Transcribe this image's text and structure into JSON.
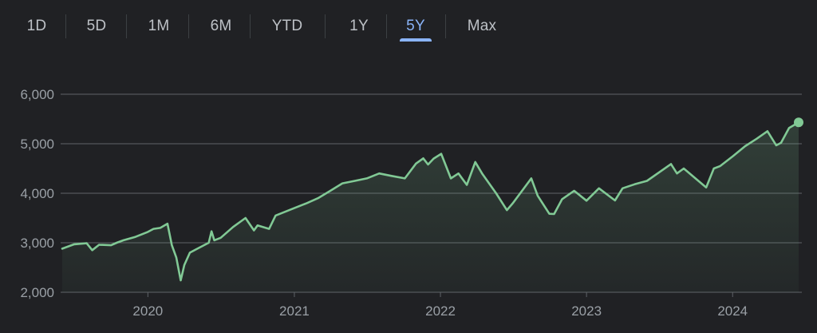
{
  "range_tabs": {
    "items": [
      {
        "label": "1D"
      },
      {
        "label": "5D"
      },
      {
        "label": "1M"
      },
      {
        "label": "6M"
      },
      {
        "label": "YTD"
      },
      {
        "label": "1Y"
      },
      {
        "label": "5Y"
      },
      {
        "label": "Max"
      }
    ],
    "selected": "5Y"
  },
  "colors": {
    "background": "#202124",
    "grid": "#5f6368",
    "line": "#81c995",
    "accent": "#8ab4f8",
    "tick_text": "#9aa0a6"
  },
  "chart_data": {
    "type": "area",
    "title": "",
    "xlabel": "",
    "ylabel": "",
    "ylim": [
      2000,
      6000
    ],
    "xlim": [
      "2019-06-01",
      "2024-06-14"
    ],
    "grid": true,
    "y_ticks": [
      "6,000",
      "5,000",
      "4,000",
      "3,000",
      "2,000"
    ],
    "y_tick_values": [
      6000,
      5000,
      4000,
      3000,
      2000
    ],
    "x_ticks": [
      "2020",
      "2021",
      "2022",
      "2023",
      "2024"
    ],
    "x_tick_dates": [
      "2020-01-01",
      "2021-01-01",
      "2022-01-01",
      "2023-01-01",
      "2024-01-01"
    ],
    "series": [
      {
        "x": [
          "2019-06-01",
          "2019-07-01",
          "2019-08-01",
          "2019-08-15",
          "2019-09-01",
          "2019-10-01",
          "2019-10-15",
          "2019-11-01",
          "2019-12-01",
          "2020-01-01",
          "2020-01-15",
          "2020-02-01",
          "2020-02-19",
          "2020-03-01",
          "2020-03-12",
          "2020-03-23",
          "2020-04-01",
          "2020-04-15",
          "2020-05-01",
          "2020-06-01",
          "2020-06-08",
          "2020-06-15",
          "2020-07-01",
          "2020-08-01",
          "2020-09-01",
          "2020-09-22",
          "2020-10-01",
          "2020-10-30",
          "2020-11-15",
          "2021-01-01",
          "2021-02-01",
          "2021-03-01",
          "2021-04-01",
          "2021-05-01",
          "2021-06-01",
          "2021-07-01",
          "2021-08-01",
          "2021-09-01",
          "2021-10-04",
          "2021-11-01",
          "2021-11-19",
          "2021-12-01",
          "2021-12-15",
          "2022-01-03",
          "2022-01-27",
          "2022-02-15",
          "2022-03-08",
          "2022-03-29",
          "2022-04-15",
          "2022-05-20",
          "2022-06-16",
          "2022-07-01",
          "2022-08-16",
          "2022-09-01",
          "2022-09-30",
          "2022-10-12",
          "2022-11-01",
          "2022-12-01",
          "2023-01-01",
          "2023-02-01",
          "2023-03-13",
          "2023-04-01",
          "2023-05-01",
          "2023-06-01",
          "2023-07-31",
          "2023-08-15",
          "2023-09-01",
          "2023-10-27",
          "2023-11-15",
          "2023-12-01",
          "2024-01-02",
          "2024-02-01",
          "2024-03-01",
          "2024-03-28",
          "2024-04-19",
          "2024-05-01",
          "2024-05-21",
          "2024-06-14"
        ],
        "y": [
          2880,
          2970,
          2990,
          2850,
          2960,
          2950,
          3000,
          3050,
          3120,
          3220,
          3280,
          3300,
          3385,
          2950,
          2700,
          2240,
          2550,
          2800,
          2870,
          3000,
          3230,
          3050,
          3100,
          3320,
          3500,
          3250,
          3350,
          3280,
          3550,
          3700,
          3800,
          3900,
          4050,
          4200,
          4250,
          4300,
          4400,
          4350,
          4300,
          4600,
          4705,
          4580,
          4700,
          4796,
          4300,
          4400,
          4170,
          4630,
          4400,
          4000,
          3660,
          3800,
          4300,
          3950,
          3585,
          3580,
          3880,
          4050,
          3850,
          4100,
          3855,
          4100,
          4180,
          4250,
          4590,
          4400,
          4500,
          4117,
          4500,
          4550,
          4750,
          4950,
          5100,
          5254,
          4967,
          5018,
          5320,
          5430
        ]
      }
    ]
  }
}
